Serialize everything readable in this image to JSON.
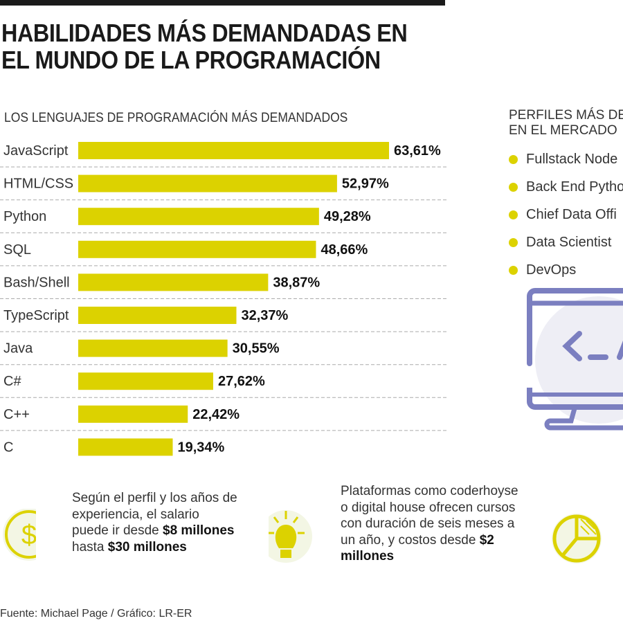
{
  "title_line1": "HABILIDADES MÁS DEMANDADAS EN",
  "title_line2": "EL MUNDO DE LA PROGRAMACIÓN",
  "chart_data": {
    "type": "bar",
    "orientation": "horizontal",
    "title": "LOS LENGUAJES DE PROGRAMACIÓN MÁS DEMANDADOS",
    "categories": [
      "JavaScript",
      "HTML/CSS",
      "Python",
      "SQL",
      "Bash/Shell",
      "TypeScript",
      "Java",
      "C#",
      "C++",
      "C"
    ],
    "values": [
      63.61,
      52.97,
      49.28,
      48.66,
      38.87,
      32.37,
      30.55,
      27.62,
      22.42,
      19.34
    ],
    "labels": [
      "63,61%",
      "52,97%",
      "49,28%",
      "48,66%",
      "38,87%",
      "32,37%",
      "30,55%",
      "27,62%",
      "22,42%",
      "19,34%"
    ],
    "unit": "%",
    "bar_color": "#dcd200",
    "grid": false
  },
  "profiles": {
    "title_line1": "PERFILES MÁS DE",
    "title_line2": "EN EL MERCADO",
    "items": [
      "Fullstack Node",
      "Back End Pytho",
      "Chief Data Offi",
      "Data Scientist",
      "DevOps"
    ]
  },
  "notes": [
    {
      "icon": "dollar-icon",
      "pre": "Según el perfil y los años de experiencia, el salario puede ir desde ",
      "b1": "$8 millones",
      "mid": " hasta ",
      "b2": "$30 millones"
    },
    {
      "icon": "lightbulb-icon",
      "pre": "Plataformas como coderhoyse o digital house ofrecen cursos con duración de seis meses a un año, y costos desde ",
      "b1": "$2 millones"
    }
  ],
  "source": "Fuente: Michael Page / Gráfico: LR-ER",
  "colors": {
    "accent": "#dcd200",
    "icon_purple": "#7b7fc0"
  }
}
